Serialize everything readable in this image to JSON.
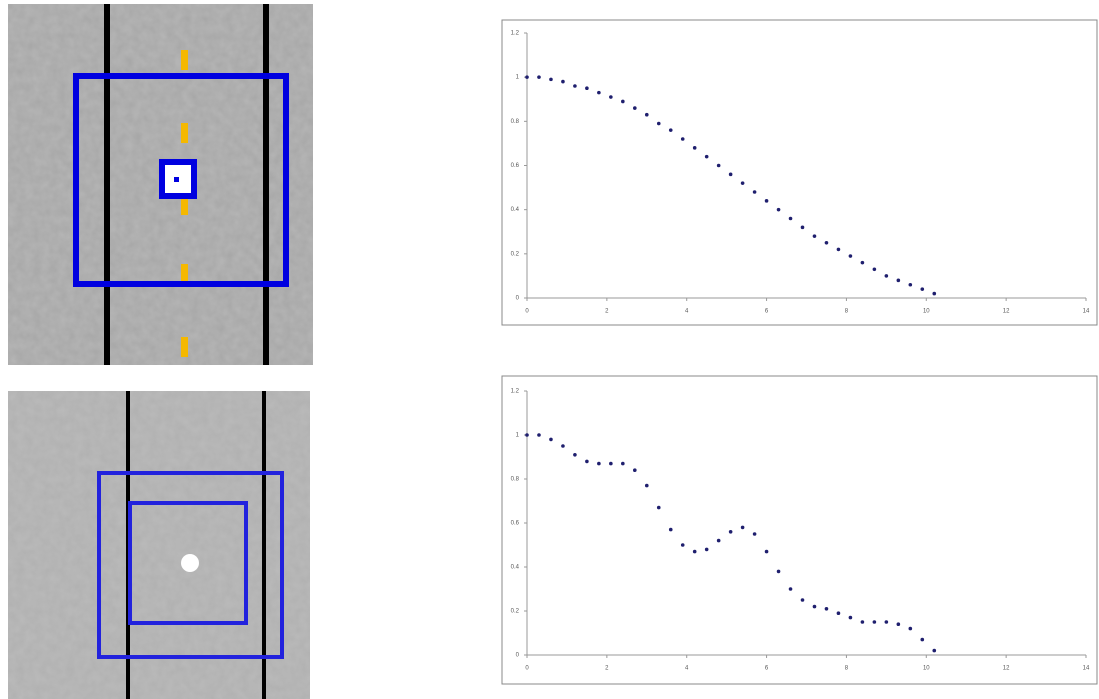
{
  "chart_data": [
    {
      "type": "scatter",
      "color": "#1f1f6e",
      "x": [
        0,
        0.3,
        0.6,
        0.9,
        1.2,
        1.5,
        1.8,
        2.1,
        2.4,
        2.7,
        3.0,
        3.3,
        3.6,
        3.9,
        4.2,
        4.5,
        4.8,
        5.1,
        5.4,
        5.7,
        6.0,
        6.3,
        6.6,
        6.9,
        7.2,
        7.5,
        7.8,
        8.1,
        8.4,
        8.7,
        9.0,
        9.3,
        9.6,
        9.9,
        10.2
      ],
      "values": [
        1.0,
        1.0,
        0.99,
        0.98,
        0.96,
        0.95,
        0.93,
        0.91,
        0.89,
        0.86,
        0.83,
        0.79,
        0.76,
        0.72,
        0.68,
        0.64,
        0.6,
        0.56,
        0.52,
        0.48,
        0.44,
        0.4,
        0.36,
        0.32,
        0.28,
        0.25,
        0.22,
        0.19,
        0.16,
        0.13,
        0.1,
        0.08,
        0.06,
        0.04,
        0.02
      ],
      "xlim": [
        0,
        14
      ],
      "xticks": [
        0,
        2,
        4,
        6,
        8,
        10,
        12,
        14
      ],
      "ylim": [
        0,
        1.2
      ],
      "yticks": [
        0,
        0.2,
        0.4,
        0.6,
        0.8,
        1,
        1.2
      ]
    },
    {
      "type": "scatter",
      "color": "#1f1f6e",
      "x": [
        0,
        0.3,
        0.6,
        0.9,
        1.2,
        1.5,
        1.8,
        2.1,
        2.4,
        2.7,
        3.0,
        3.3,
        3.6,
        3.9,
        4.2,
        4.5,
        4.8,
        5.1,
        5.4,
        5.7,
        6.0,
        6.3,
        6.6,
        6.9,
        7.2,
        7.5,
        7.8,
        8.1,
        8.4,
        8.7,
        9.0,
        9.3,
        9.6,
        9.9,
        10.2
      ],
      "values": [
        1.0,
        1.0,
        0.98,
        0.95,
        0.91,
        0.88,
        0.87,
        0.87,
        0.87,
        0.84,
        0.77,
        0.67,
        0.57,
        0.5,
        0.47,
        0.48,
        0.52,
        0.56,
        0.58,
        0.55,
        0.47,
        0.38,
        0.3,
        0.25,
        0.22,
        0.21,
        0.19,
        0.17,
        0.15,
        0.15,
        0.15,
        0.14,
        0.12,
        0.07,
        0.02
      ],
      "xlim": [
        0,
        14
      ],
      "xticks": [
        0,
        2,
        4,
        6,
        8,
        10,
        12,
        14
      ],
      "ylim": [
        0,
        1.2
      ],
      "yticks": [
        0,
        0.2,
        0.4,
        0.6,
        0.8,
        1,
        1.2
      ]
    }
  ]
}
